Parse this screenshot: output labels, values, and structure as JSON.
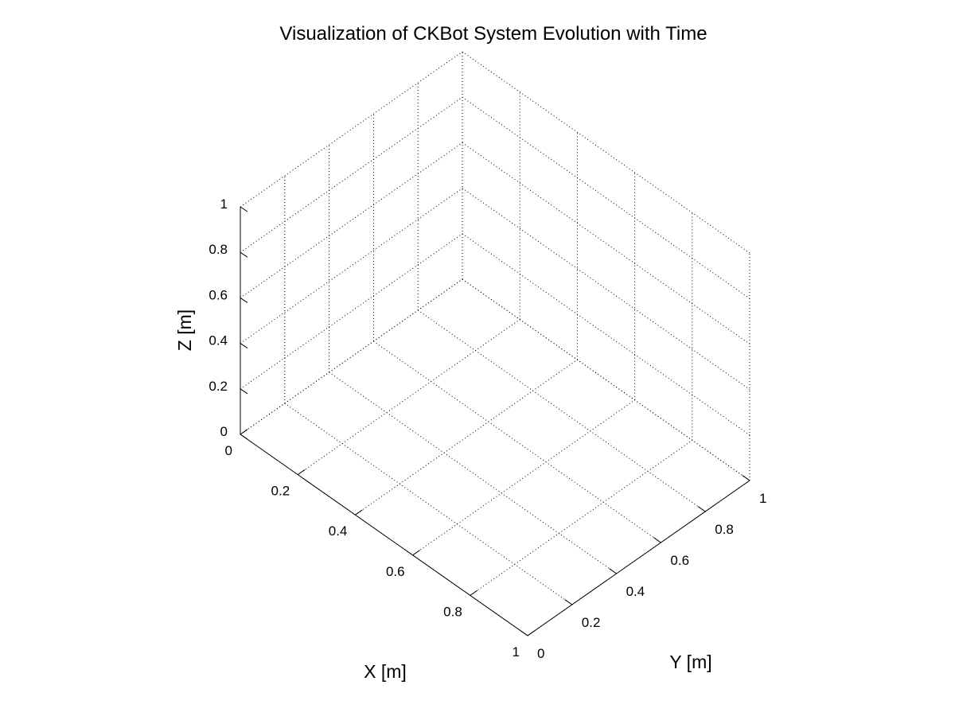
{
  "chart_data": {
    "type": "scatter",
    "projection": "3d",
    "title": "Visualization of CKBot System Evolution with Time",
    "xlabel": "X [m]",
    "ylabel": "Y [m]",
    "zlabel": "Z [m]",
    "xlim": [
      0,
      1
    ],
    "ylim": [
      0,
      1
    ],
    "zlim": [
      0,
      1
    ],
    "xticks": [
      0,
      0.2,
      0.4,
      0.6,
      0.8,
      1
    ],
    "yticks": [
      0,
      0.2,
      0.4,
      0.6,
      0.8,
      1
    ],
    "zticks": [
      0,
      0.2,
      0.4,
      0.6,
      0.8,
      1
    ],
    "xtick_labels": [
      "0",
      "0.2",
      "0.4",
      "0.6",
      "0.8",
      "1"
    ],
    "ytick_labels": [
      "0",
      "0.2",
      "0.4",
      "0.6",
      "0.8",
      "1"
    ],
    "ztick_labels": [
      "0",
      "0.2",
      "0.4",
      "0.6",
      "0.8",
      "1"
    ],
    "grid": true,
    "grid_style": "dotted",
    "series": []
  }
}
